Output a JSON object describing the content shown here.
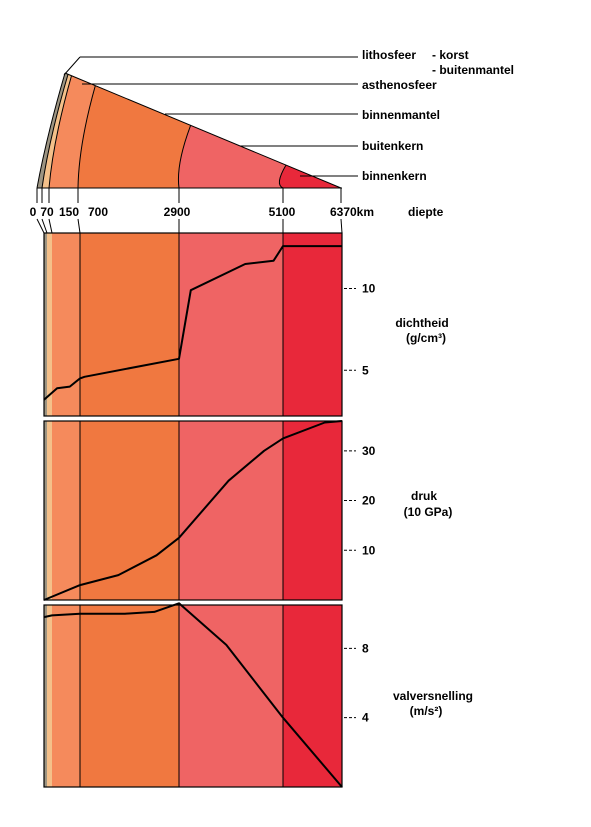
{
  "colors": {
    "crust": "#9c9482",
    "lithosphere_mantle": "#f4c08a",
    "asthenosphere": "#f58a5c",
    "inner_mantle": "#f07840",
    "outer_core": "#ef6464",
    "inner_core": "#e8283a"
  },
  "layer_labels": {
    "lithosphere": "lithosfeer",
    "crust": "- korst",
    "outer_mantle": "- buitenmantel",
    "asthenosphere": "asthenosfeer",
    "inner_mantle": "binnenmantel",
    "outer_core": "buitenkern",
    "inner_core": "binnenkern"
  },
  "depth_axis": {
    "title": "diepte",
    "ticks": [
      "0",
      "70",
      "150",
      "700",
      "2900",
      "5100",
      "6370km"
    ],
    "tick_values": [
      0,
      70,
      150,
      700,
      2900,
      5100,
      6370
    ]
  },
  "chart_data": [
    {
      "type": "line",
      "title": "dichtheid",
      "unit": "(g/cm³)",
      "yticks": [
        5,
        10
      ],
      "ylim": [
        2.2,
        13.4
      ],
      "x": [
        0,
        250,
        500,
        700,
        800,
        2900,
        3150,
        4300,
        4900,
        5100,
        6370
      ],
      "values": [
        3.2,
        3.9,
        4.0,
        4.5,
        4.6,
        5.7,
        9.9,
        11.5,
        11.7,
        12.6,
        12.6
      ]
    },
    {
      "type": "line",
      "title": "druk",
      "unit": "(10 GPa)",
      "yticks": [
        10,
        20,
        30
      ],
      "ylim": [
        0,
        36
      ],
      "x": [
        0,
        700,
        1550,
        2400,
        2900,
        3950,
        4700,
        5100,
        6000,
        6370
      ],
      "values": [
        0,
        3,
        5,
        9,
        12.5,
        24,
        30,
        32.5,
        35.7,
        36
      ]
    },
    {
      "type": "line",
      "title": "valversnelling",
      "unit": "(m/s²)",
      "yticks": [
        4,
        8
      ],
      "ylim": [
        0,
        10.5
      ],
      "x": [
        0,
        150,
        700,
        1700,
        2350,
        2900,
        3900,
        5100,
        6370
      ],
      "values": [
        9.8,
        9.9,
        10.0,
        10.0,
        10.1,
        10.6,
        8.2,
        4.0,
        0
      ]
    }
  ]
}
